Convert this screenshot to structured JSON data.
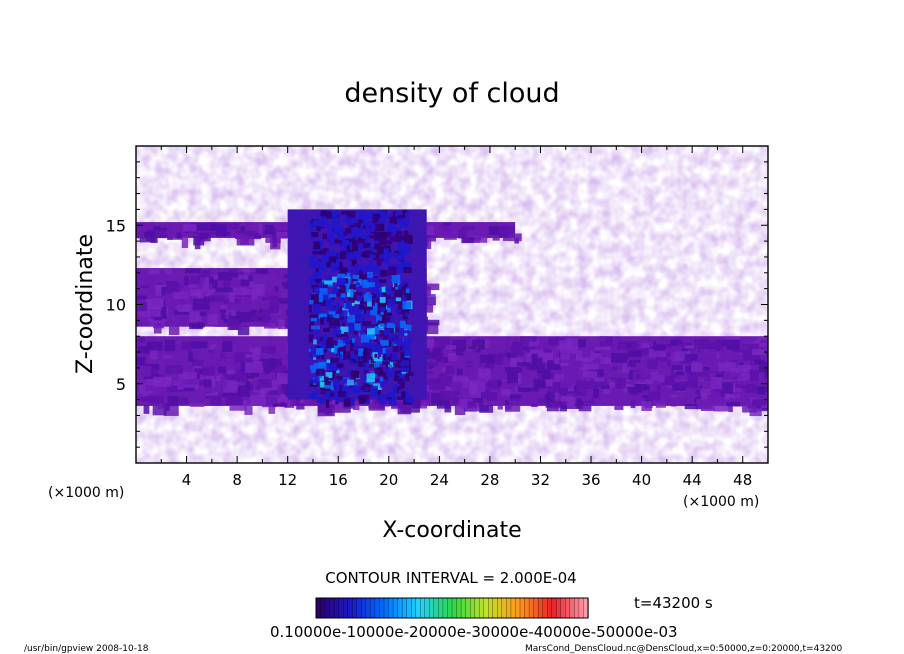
{
  "chart_data": {
    "type": "heatmap",
    "title": "density of cloud",
    "xlabel": "X-coordinate",
    "ylabel": "Z-coordinate",
    "x_unit_left": "(×1000 m)",
    "x_unit_right": "(×1000 m)",
    "xlim": [
      0,
      50
    ],
    "ylim": [
      0,
      20
    ],
    "x_ticks": [
      4,
      8,
      12,
      16,
      20,
      24,
      28,
      32,
      36,
      40,
      44,
      48
    ],
    "y_ticks": [
      5,
      10,
      15
    ],
    "contour_interval_text": "CONTOUR INTERVAL = 2.000E-04",
    "time_text": "t=43200 s",
    "colorbar": {
      "labels_text": "0.10000e-10000e-20000e-30000e-40000e-50000e-03",
      "colors": [
        "#2b006b",
        "#1a1acc",
        "#0070ff",
        "#22d2ff",
        "#2bd84a",
        "#bfe32a",
        "#ff9a1a",
        "#e8202a",
        "#ff9aa8"
      ]
    },
    "cloud_layers": [
      {
        "z_range": [
          3.6,
          5.2
        ],
        "x_range": [
          0,
          50
        ],
        "level": "low"
      },
      {
        "z_range": [
          5.2,
          8.0
        ],
        "x_range": [
          0,
          50
        ],
        "level": "low"
      },
      {
        "z_range": [
          8.6,
          12.3
        ],
        "x_range": [
          0,
          23
        ],
        "level": "low"
      },
      {
        "z_range": [
          14.2,
          15.2
        ],
        "x_range": [
          0,
          30
        ],
        "level": "low"
      },
      {
        "z_range": [
          4.0,
          16.0
        ],
        "x_range": [
          12,
          23
        ],
        "level": "high"
      }
    ],
    "footer_left": "/usr/bin/gpview   2008-10-18",
    "footer_right": "MarsCond_DensCloud.nc@DensCloud,x=0:50000,z=0:20000,t=43200"
  }
}
